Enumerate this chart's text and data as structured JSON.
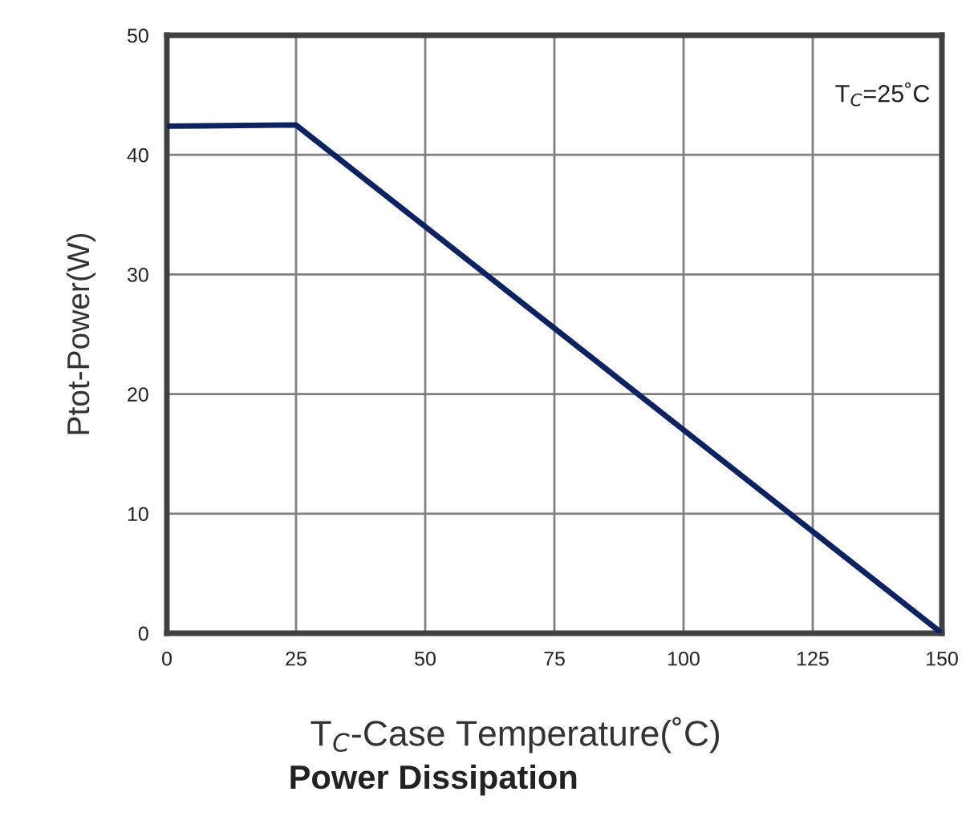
{
  "chart_data": {
    "type": "line",
    "title": "Power Dissipation",
    "xlabel": "T$_{C}$-Case Temperature(˚C)",
    "ylabel": "Ptot-Power(W)",
    "annotations": [
      "T$_{C}$=25˚C"
    ],
    "series": [
      {
        "color": "#0d2260",
        "x": [
          0,
          25,
          150
        ],
        "values": [
          42.4,
          42.5,
          0
        ]
      }
    ],
    "xlim": [
      0,
      150
    ],
    "xticks": [
      0,
      25,
      50,
      75,
      100,
      125,
      150
    ],
    "ylim": [
      0,
      50
    ],
    "yticks": [
      0,
      10,
      20,
      30,
      40,
      50
    ],
    "grid": true,
    "legend": false,
    "marker": "none",
    "line_style": "solid"
  }
}
